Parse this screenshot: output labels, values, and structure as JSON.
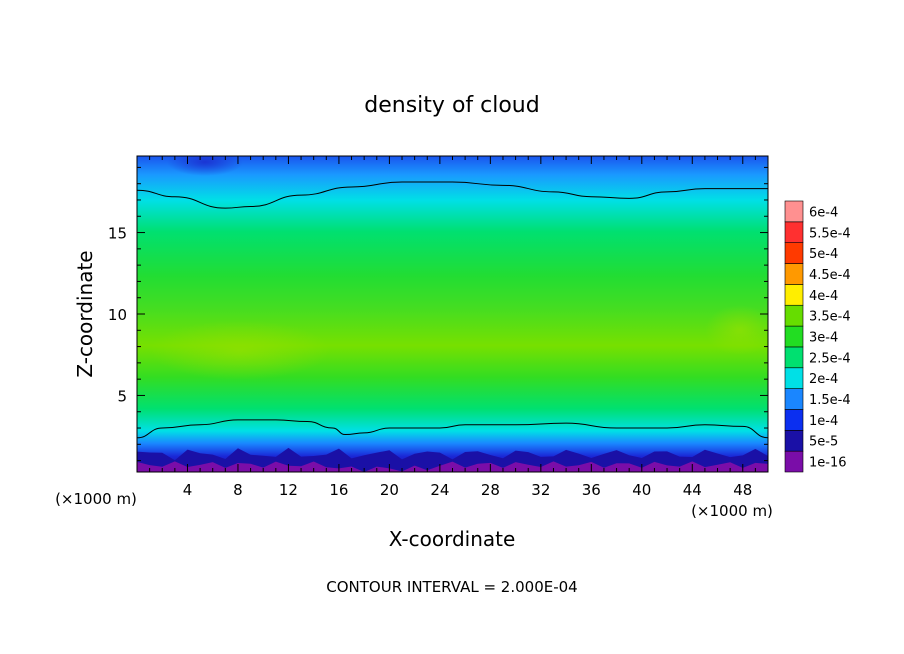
{
  "chart_data": {
    "type": "heatmap",
    "title": "density of cloud",
    "xlabel": "X-coordinate",
    "ylabel": "Z-coordinate",
    "x_unit": "(×1000 m)",
    "y_unit": "(×1000 m)",
    "xlim": [
      0,
      50
    ],
    "ylim": [
      0.3,
      19.7
    ],
    "x_ticks": [
      4,
      8,
      12,
      16,
      20,
      24,
      28,
      32,
      36,
      40,
      44,
      48
    ],
    "y_ticks": [
      5,
      10,
      15
    ],
    "colorbar": {
      "labels": [
        "1e-16",
        "5e-5",
        "1e-4",
        "1.5e-4",
        "2e-4",
        "2.5e-4",
        "3e-4",
        "3.5e-4",
        "4e-4",
        "4.5e-4",
        "5e-4",
        "5.5e-4",
        "6e-4"
      ],
      "values": [
        1e-16,
        5e-05,
        0.0001,
        0.00015,
        0.0002,
        0.00025,
        0.0003,
        0.00035,
        0.0004,
        0.00045,
        0.0005,
        0.00055,
        0.0006
      ],
      "colors": [
        "#7a0da8",
        "#1a10a6",
        "#0b2ff0",
        "#1a86ff",
        "#00e0e6",
        "#00e070",
        "#22dd22",
        "#66dd00",
        "#ffee00",
        "#ff9900",
        "#ff3a00",
        "#ff3030",
        "#ff9090"
      ]
    },
    "contour_levels": [
      0.0002
    ],
    "contour_lower": [
      [
        0,
        2.4
      ],
      [
        2,
        3.0
      ],
      [
        5,
        3.2
      ],
      [
        8,
        3.5
      ],
      [
        11,
        3.5
      ],
      [
        13.5,
        3.4
      ],
      [
        15.5,
        3.0
      ],
      [
        16.5,
        2.6
      ],
      [
        18,
        2.7
      ],
      [
        20,
        3.0
      ],
      [
        24,
        3.0
      ],
      [
        26,
        3.2
      ],
      [
        30,
        3.2
      ],
      [
        34,
        3.3
      ],
      [
        38,
        3.0
      ],
      [
        42,
        3.0
      ],
      [
        45,
        3.2
      ],
      [
        48,
        3.1
      ],
      [
        50,
        2.4
      ]
    ],
    "contour_upper": [
      [
        0,
        17.6
      ],
      [
        3,
        17.2
      ],
      [
        7,
        16.5
      ],
      [
        9,
        16.6
      ],
      [
        13,
        17.3
      ],
      [
        17,
        17.8
      ],
      [
        21,
        18.1
      ],
      [
        25,
        18.1
      ],
      [
        29,
        17.9
      ],
      [
        33,
        17.5
      ],
      [
        36,
        17.2
      ],
      [
        39,
        17.1
      ],
      [
        42,
        17.5
      ],
      [
        45,
        17.7
      ],
      [
        50,
        17.7
      ]
    ],
    "annotation": "CONTOUR INTERVAL = 2.000E-04"
  }
}
